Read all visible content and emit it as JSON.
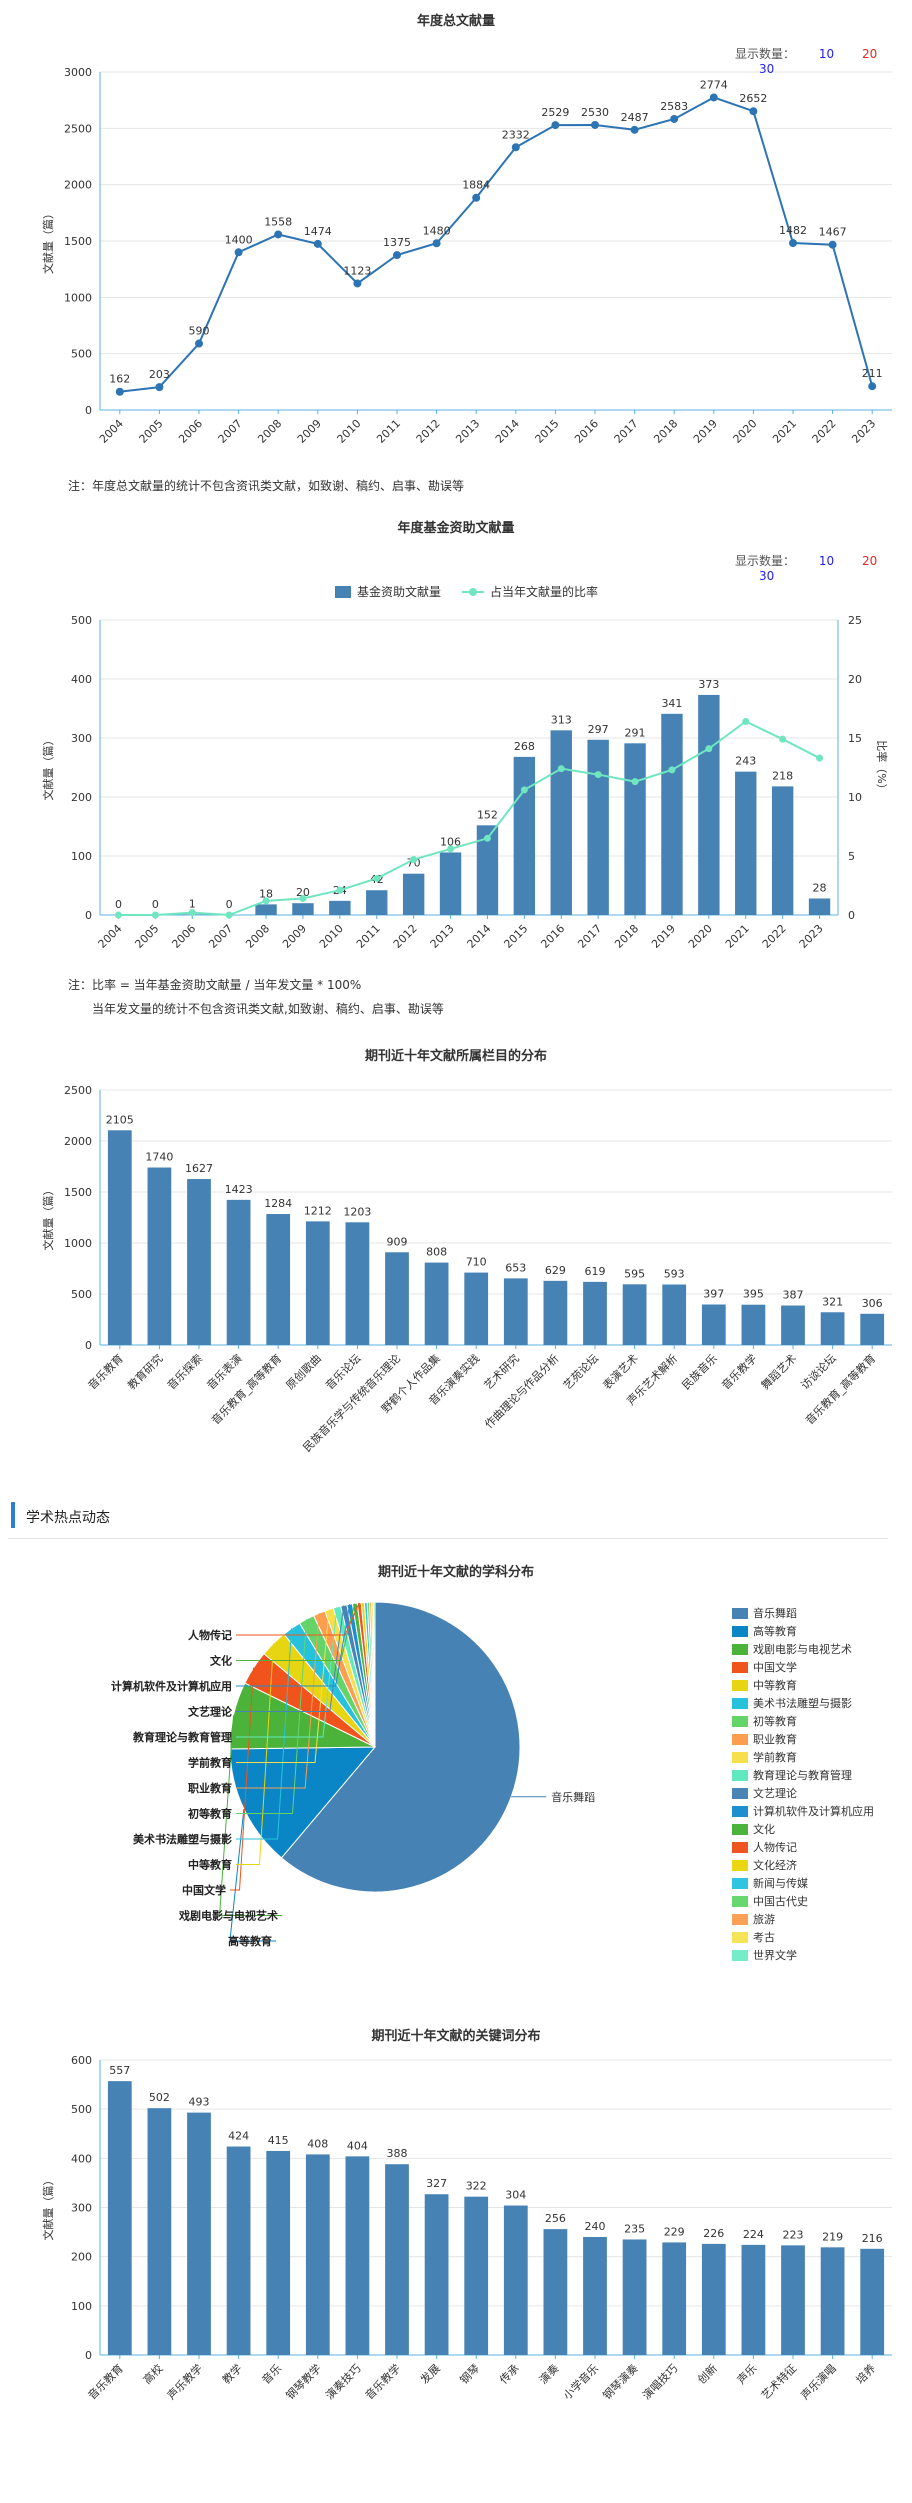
{
  "controls": {
    "display_count_label": "显示数量：",
    "options": [
      "10",
      "20",
      "30"
    ]
  },
  "notes": {
    "annual": "注：年度总文献量的统计不包含资讯类文献，如致谢、稿约、启事、勘误等",
    "fund_line1": "注：比率 = 当年基金资助文献量 / 当年发文量 * 100%",
    "fund_line2": "当年发文量的统计不包含资讯类文献,如致谢、稿约、启事、勘误等"
  },
  "section": {
    "title": "学术热点动态"
  },
  "colors": {
    "primary": "#4682b4",
    "line": "#2d74b4",
    "ratio": "#6fe6c0",
    "axis": "#59b0e0"
  },
  "chart_data": [
    {
      "type": "line",
      "title": "年度总文献量",
      "ylabel": "文献量（篇）",
      "ylim": [
        0,
        3000
      ],
      "yticks": [
        0,
        500,
        1000,
        1500,
        2000,
        2500,
        3000
      ],
      "categories": [
        "2004",
        "2005",
        "2006",
        "2007",
        "2008",
        "2009",
        "2010",
        "2011",
        "2012",
        "2013",
        "2014",
        "2015",
        "2016",
        "2017",
        "2018",
        "2019",
        "2020",
        "2021",
        "2022",
        "2023"
      ],
      "values": [
        162,
        203,
        590,
        1400,
        1558,
        1474,
        1123,
        1375,
        1480,
        1884,
        2332,
        2529,
        2530,
        2487,
        2583,
        2774,
        2652,
        1482,
        1467,
        211
      ]
    },
    {
      "type": "bar",
      "title": "年度基金资助文献量",
      "legend": [
        "基金资助文献量",
        "占当年文献量的比率"
      ],
      "ylabel": "文献量（篇）",
      "y2label": "比率（%）",
      "ylim": [
        0,
        500
      ],
      "yticks": [
        0,
        100,
        200,
        300,
        400,
        500
      ],
      "y2lim": [
        0,
        25
      ],
      "y2ticks": [
        0,
        5,
        10,
        15,
        20,
        25
      ],
      "categories": [
        "2004",
        "2005",
        "2006",
        "2007",
        "2008",
        "2009",
        "2010",
        "2011",
        "2012",
        "2013",
        "2014",
        "2015",
        "2016",
        "2017",
        "2018",
        "2019",
        "2020",
        "2021",
        "2022",
        "2023"
      ],
      "values": [
        0,
        0,
        1,
        0,
        18,
        20,
        24,
        42,
        70,
        106,
        152,
        268,
        313,
        297,
        291,
        341,
        373,
        243,
        218,
        28
      ],
      "ratio": [
        0,
        0,
        0.2,
        0,
        1.2,
        1.4,
        2.1,
        3.1,
        4.7,
        5.6,
        6.5,
        10.6,
        12.4,
        11.9,
        11.3,
        12.3,
        14.1,
        16.4,
        14.9,
        13.3
      ]
    },
    {
      "type": "bar",
      "title": "期刊近十年文献所属栏目的分布",
      "ylabel": "文献量（篇）",
      "ylim": [
        0,
        2500
      ],
      "yticks": [
        0,
        500,
        1000,
        1500,
        2000,
        2500
      ],
      "categories": [
        "音乐教育",
        "教育研究",
        "音乐探索",
        "音乐表演",
        "音乐教育_高等教育",
        "原创歌曲",
        "音乐论坛",
        "民族音乐学与传统音乐理论",
        "野鹤个人作品集",
        "音乐演奏实践",
        "艺术研究",
        "作曲理论与作品分析",
        "艺苑论坛",
        "表演艺术",
        "声乐艺术解析",
        "民族音乐",
        "音乐教学",
        "舞蹈艺术",
        "访谈论坛",
        "音乐教育_高等教育"
      ],
      "values": [
        2105,
        1740,
        1627,
        1423,
        1284,
        1212,
        1203,
        909,
        808,
        710,
        653,
        629,
        619,
        595,
        593,
        397,
        395,
        387,
        321,
        306
      ]
    },
    {
      "type": "pie",
      "title": "期刊近十年文献的学科分布",
      "labels": [
        "音乐舞蹈",
        "高等教育",
        "戏剧电影与电视艺术",
        "中国文学",
        "中等教育",
        "美术书法雕塑与摄影",
        "初等教育",
        "职业教育",
        "学前教育",
        "教育理论与教育管理",
        "文艺理论",
        "计算机软件及计算机应用",
        "文化",
        "人物传记",
        "文化经济",
        "新闻与传媒",
        "中国古代史",
        "旅游",
        "考古",
        "世界文学"
      ],
      "values": [
        2780,
        620,
        340,
        175,
        140,
        95,
        80,
        60,
        45,
        38,
        32,
        28,
        24,
        20,
        16,
        14,
        12,
        10,
        9,
        8
      ],
      "colors": [
        "#4682b4",
        "#0a86c7",
        "#4bb33a",
        "#f0531b",
        "#e8d512",
        "#26c2dc",
        "#64d36a",
        "#fb9e50",
        "#f7df4c",
        "#61e8be",
        "#4a84b4",
        "#1d8fd0",
        "#4db33c",
        "#ef5520",
        "#ebd613",
        "#2fc4df",
        "#69d770",
        "#fba057",
        "#f6e458",
        "#76ecc8"
      ],
      "callouts": [
        "音乐舞蹈",
        "高等教育",
        "戏剧电影与电视艺术",
        "中国文学",
        "中等教育",
        "美术书法雕塑与摄影",
        "初等教育",
        "职业教育",
        "学前教育",
        "教育理论与教育管理",
        "文艺理论",
        "计算机软件及计算机应用",
        "文化",
        "人物传记"
      ]
    },
    {
      "type": "bar",
      "title": "期刊近十年文献的关键词分布",
      "ylabel": "文献量（篇）",
      "ylim": [
        0,
        600
      ],
      "yticks": [
        0,
        100,
        200,
        300,
        400,
        500,
        600
      ],
      "categories": [
        "音乐教育",
        "高校",
        "声乐教学",
        "教学",
        "音乐",
        "钢琴教学",
        "演奏技巧",
        "音乐教学",
        "发展",
        "钢琴",
        "传承",
        "演奏",
        "小学音乐",
        "钢琴演奏",
        "演唱技巧",
        "创新",
        "声乐",
        "艺术特征",
        "声乐演唱",
        "培养"
      ],
      "values": [
        557,
        502,
        493,
        424,
        415,
        408,
        404,
        388,
        327,
        322,
        304,
        256,
        240,
        235,
        229,
        226,
        224,
        223,
        219,
        216
      ]
    }
  ]
}
